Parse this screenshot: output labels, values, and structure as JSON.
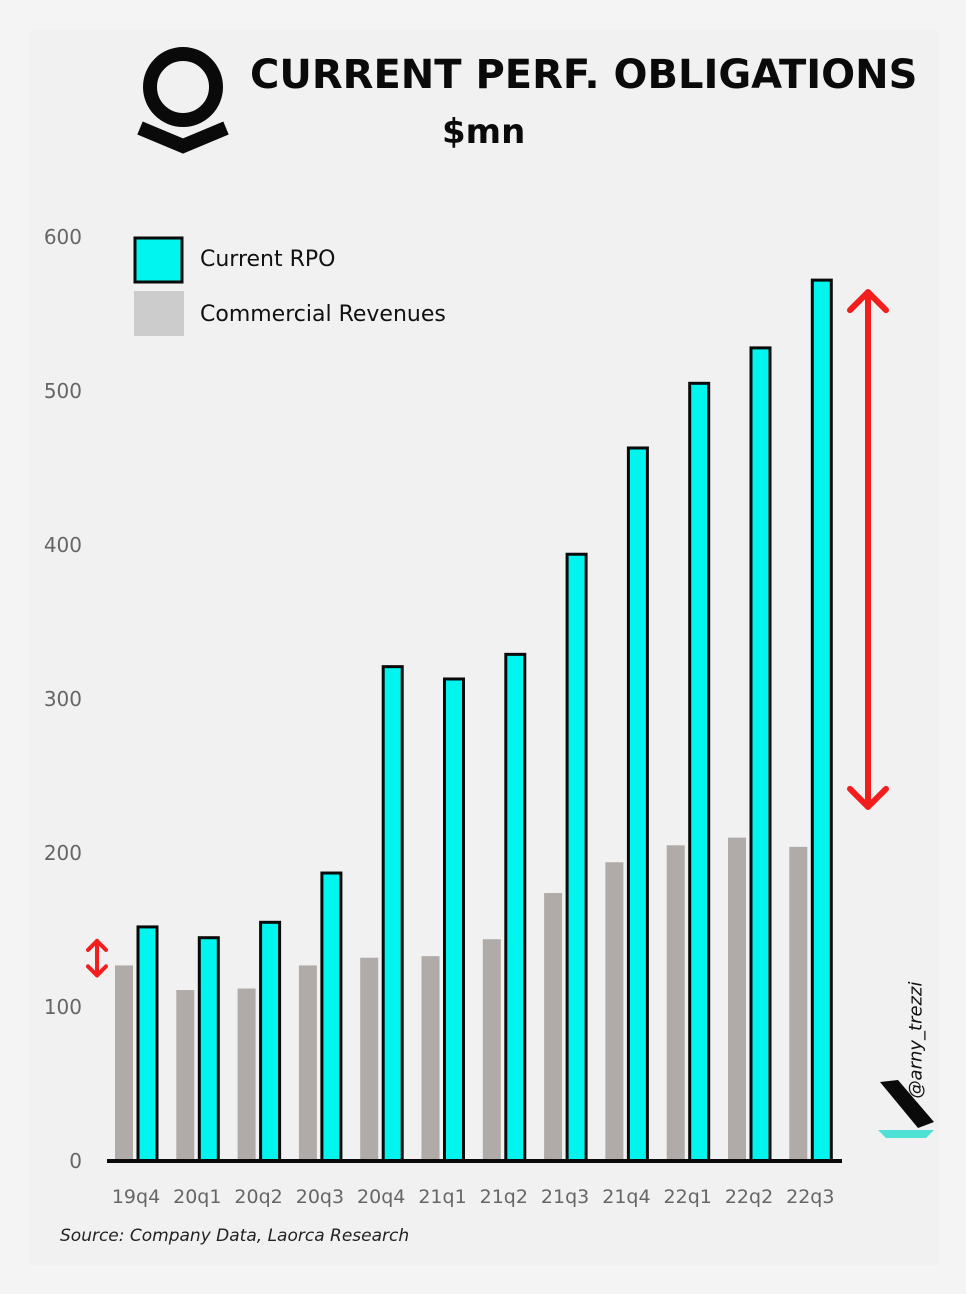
{
  "title": "CURRENT PERF. OBLIGATIONS",
  "subtitle": "$mn",
  "source": "Source: Company Data, Laorca Research",
  "handle": "@arny_trezzi",
  "logo_icon": "palantir-logo-icon",
  "brand_icon": "laorca-brand-icon",
  "colors": {
    "current_rpo": "#00f5ee",
    "commercial_revenues": "#b0aaa8",
    "legend_commercial": "#cccccc",
    "arrow": "#f21d1d",
    "brand_teal": "#4fe0d6",
    "background": "#f4f4f4"
  },
  "chart_data": {
    "type": "bar",
    "categories": [
      "19q4",
      "20q1",
      "20q2",
      "20q3",
      "20q4",
      "21q1",
      "21q2",
      "21q3",
      "21q4",
      "22q1",
      "22q2",
      "22q3"
    ],
    "series": [
      {
        "name": "Commercial Revenues",
        "values": [
          127,
          111,
          112,
          127,
          132,
          133,
          144,
          174,
          194,
          205,
          210,
          204
        ]
      },
      {
        "name": "Current RPO",
        "values": [
          152,
          145,
          155,
          187,
          321,
          313,
          329,
          394,
          463,
          505,
          528,
          572
        ]
      }
    ],
    "ylim": [
      0,
      600
    ],
    "yticks": [
      0,
      100,
      200,
      300,
      400,
      500,
      600
    ],
    "legend_placement": "top-left",
    "grid": false,
    "annotations": [
      {
        "type": "double-arrow",
        "category": "19q4",
        "from": 127,
        "to": 152
      },
      {
        "type": "double-arrow",
        "category": "22q3",
        "from": 204,
        "to": 572
      }
    ]
  }
}
